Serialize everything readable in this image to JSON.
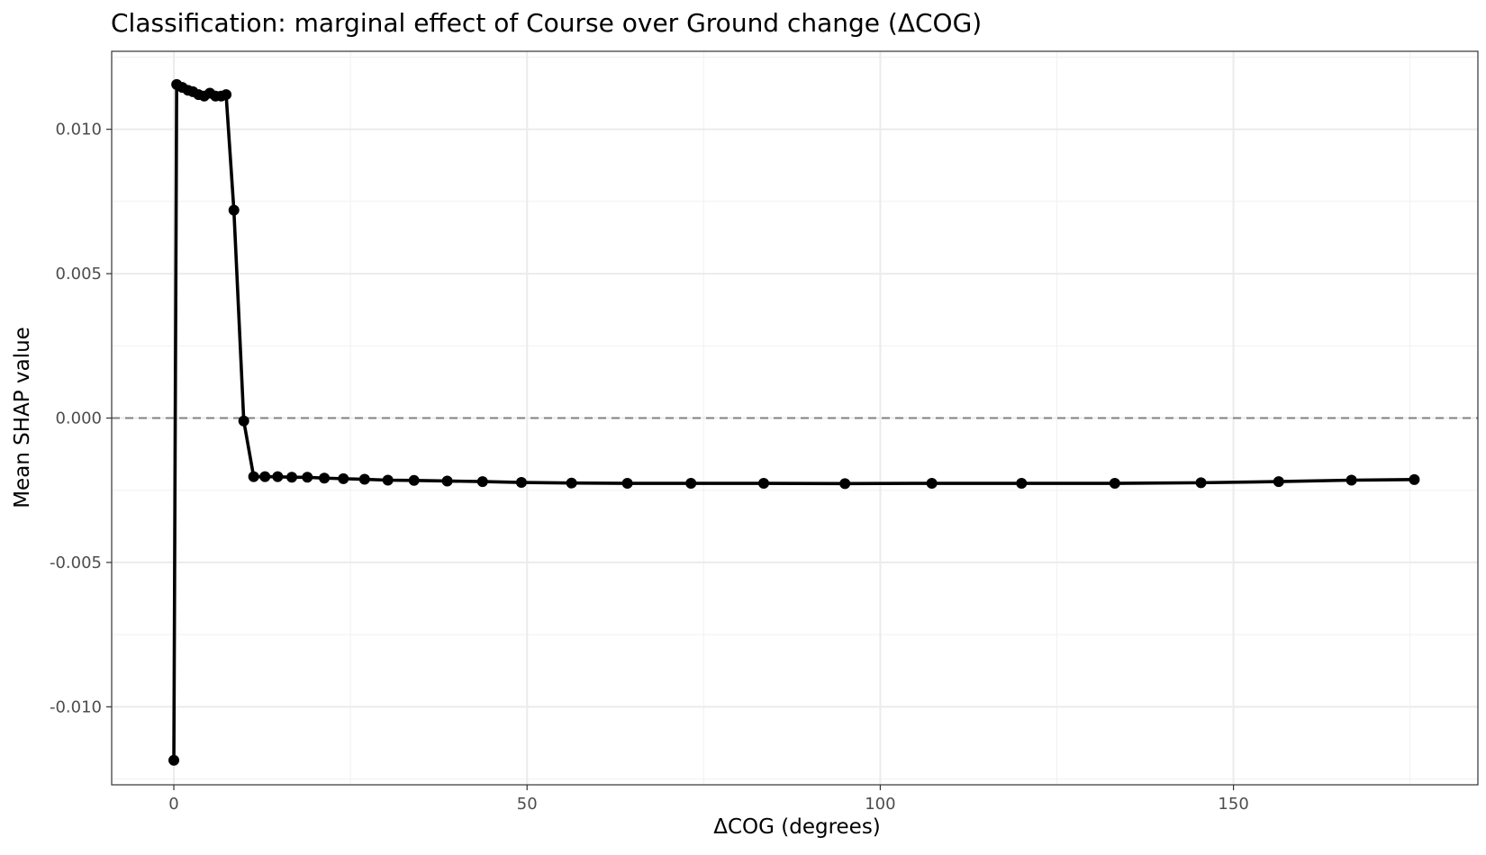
{
  "chart_data": {
    "type": "line",
    "title": "Classification: marginal effect of Course over Ground change (ΔCOG)",
    "xlabel": "ΔCOG (degrees)",
    "ylabel": "Mean SHAP value",
    "xlim": [
      -8.8,
      184.6
    ],
    "ylim": [
      -0.0127,
      0.0127
    ],
    "x_ticks": [
      0,
      50,
      100,
      150
    ],
    "x_tick_labels": [
      "0",
      "50",
      "100",
      "150"
    ],
    "y_ticks": [
      -0.01,
      -0.005,
      0.0,
      0.005,
      0.01
    ],
    "y_tick_labels": [
      "-0.010",
      "-0.005",
      "0.000",
      "0.005",
      "0.010"
    ],
    "reference_line": {
      "y": 0.0,
      "style": "dashed",
      "color": "#808080"
    },
    "grid": true,
    "series": [
      {
        "name": "Mean SHAP value",
        "color": "#000000",
        "x": [
          0.0,
          0.4,
          1.2,
          2.0,
          2.7,
          3.5,
          4.3,
          5.1,
          5.9,
          6.7,
          7.4,
          8.5,
          9.9,
          11.3,
          12.9,
          14.7,
          16.7,
          18.9,
          21.3,
          24.0,
          27.0,
          30.3,
          34.0,
          38.7,
          43.7,
          49.2,
          56.3,
          64.2,
          73.2,
          83.5,
          95.0,
          107.3,
          120.0,
          133.2,
          145.4,
          156.4,
          166.7,
          175.6
        ],
        "y": [
          -0.01185,
          0.01155,
          0.01145,
          0.01135,
          0.0113,
          0.0112,
          0.01115,
          0.01125,
          0.01115,
          0.01115,
          0.0112,
          0.0072,
          -0.0001,
          -0.00203,
          -0.00203,
          -0.00203,
          -0.00205,
          -0.00205,
          -0.00208,
          -0.0021,
          -0.00212,
          -0.00215,
          -0.00216,
          -0.00218,
          -0.0022,
          -0.00223,
          -0.00225,
          -0.00226,
          -0.00226,
          -0.00226,
          -0.00227,
          -0.00226,
          -0.00226,
          -0.00226,
          -0.00224,
          -0.0022,
          -0.00215,
          -0.00213
        ]
      }
    ]
  }
}
